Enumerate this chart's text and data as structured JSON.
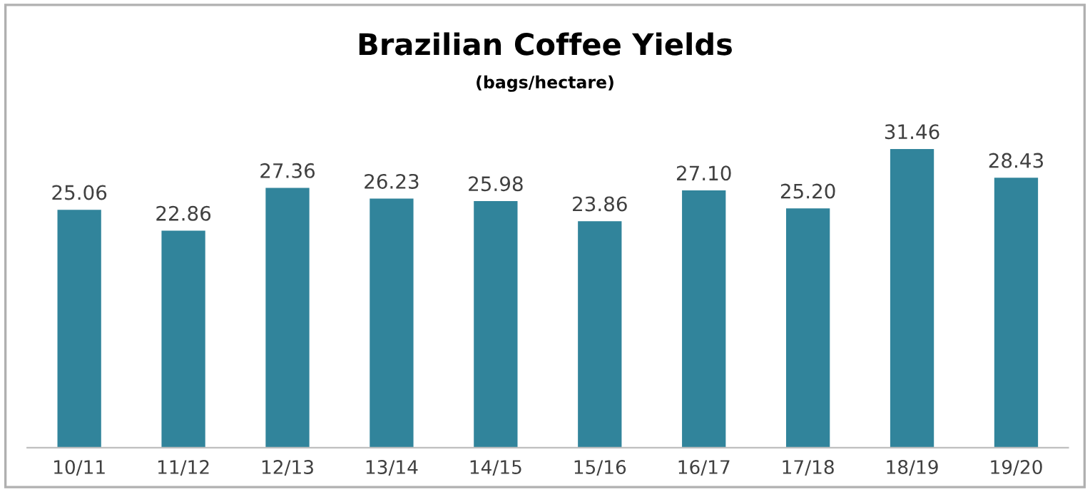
{
  "chart_data": {
    "type": "bar",
    "title": "Brazilian Coffee Yields",
    "subtitle": "(bags/hectare)",
    "categories": [
      "10/11",
      "11/12",
      "12/13",
      "13/14",
      "14/15",
      "15/16",
      "16/17",
      "17/18",
      "18/19",
      "19/20"
    ],
    "values": [
      25.06,
      22.86,
      27.36,
      26.23,
      25.98,
      23.86,
      27.1,
      25.2,
      31.46,
      28.43
    ],
    "value_labels": [
      "25.06",
      "22.86",
      "27.36",
      "26.23",
      "25.98",
      "23.86",
      "27.10",
      "25.20",
      "31.46",
      "28.43"
    ],
    "color": "#31849b",
    "grid": false,
    "legend": false
  }
}
